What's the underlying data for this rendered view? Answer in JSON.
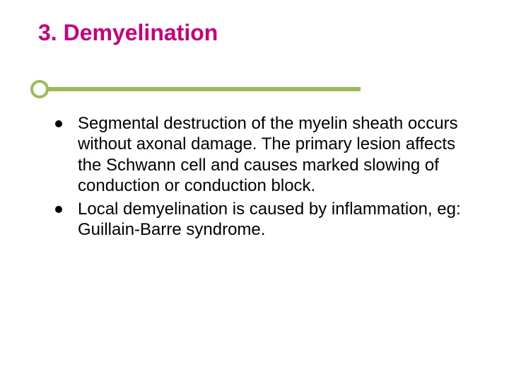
{
  "slide": {
    "title": "3. Demyelination",
    "title_color": "#c6007e",
    "title_fontsize": 32,
    "title_fontweight": "bold",
    "divider": {
      "line_color": "#9bbb59",
      "circle_border_color": "#9bbb59",
      "circle_fill": "#ffffff",
      "line_height": 6,
      "circle_diameter": 26,
      "circle_border_width": 4
    },
    "bullets": [
      {
        "text": "Segmental destruction of the myelin sheath occurs without axonal damage. The primary lesion affects the Schwann cell and causes marked slowing of conduction or conduction block."
      },
      {
        "text": "Local demyelination is caused by inflammation, eg: Guillain-Barre syndrome."
      }
    ],
    "bullet_color": "#000000",
    "bullet_diameter": 10,
    "body_fontsize": 24,
    "body_color": "#000000",
    "background_color": "#ffffff"
  }
}
